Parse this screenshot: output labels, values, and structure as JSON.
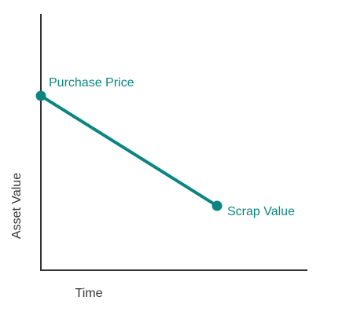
{
  "diagram": {
    "x_axis_label": "Time",
    "y_axis_label": "Asset Value",
    "points": [
      {
        "label": "Purchase Price"
      },
      {
        "label": "Scrap Value"
      }
    ]
  }
}
